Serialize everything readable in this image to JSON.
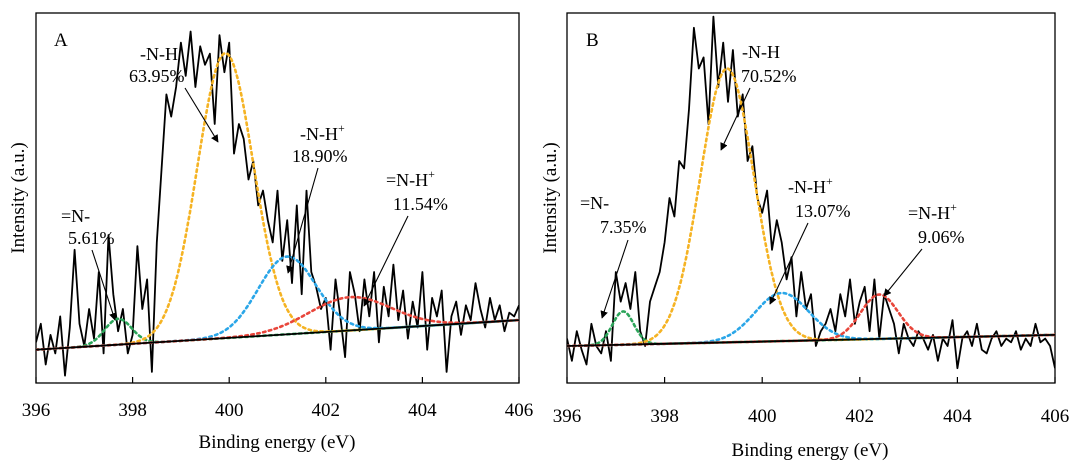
{
  "chart_data": [
    {
      "type": "line",
      "panel_label": "A",
      "xlabel": "Binding energy (eV)",
      "ylabel": "Intensity (a.u.)",
      "xlim": [
        396,
        406
      ],
      "ylim": [
        0,
        100
      ],
      "x_ticks": [
        396,
        398,
        400,
        402,
        404,
        406
      ],
      "x_tick_labels": [
        "396",
        "398",
        "400",
        "402",
        "404",
        "406"
      ],
      "grid": false,
      "baseline": {
        "color": "#000000",
        "y_start": 9,
        "y_end": 17
      },
      "peaks": [
        {
          "name": "=N-",
          "percent": "5.61%",
          "center": 397.7,
          "height": 7,
          "sigma": 0.28,
          "color": "#2ca55a"
        },
        {
          "name": "-N-H",
          "percent": "63.95%",
          "center": 399.92,
          "height": 77,
          "sigma": 0.58,
          "color": "#f5b323"
        },
        {
          "name": "-N-H",
          "superscript": "+",
          "percent": "18.90%",
          "center": 401.2,
          "height": 21,
          "sigma": 0.6,
          "color": "#2aa6e8"
        },
        {
          "name": "=N-H",
          "superscript": "+",
          "percent": "11.54%",
          "center": 402.5,
          "height": 9,
          "sigma": 0.85,
          "color": "#e8463b"
        }
      ],
      "raw_signal": {
        "color": "#000000",
        "x": [
          396.0,
          396.1,
          396.2,
          396.3,
          396.4,
          396.5,
          396.6,
          396.7,
          396.8,
          396.9,
          397.0,
          397.1,
          397.2,
          397.3,
          397.4,
          397.5,
          397.6,
          397.7,
          397.8,
          397.9,
          398.0,
          398.1,
          398.2,
          398.3,
          398.4,
          398.5,
          398.6,
          398.7,
          398.8,
          398.9,
          399.0,
          399.1,
          399.2,
          399.3,
          399.4,
          399.5,
          399.6,
          399.7,
          399.8,
          399.9,
          400.0,
          400.1,
          400.2,
          400.3,
          400.4,
          400.5,
          400.6,
          400.7,
          400.8,
          400.9,
          401.0,
          401.1,
          401.2,
          401.3,
          401.4,
          401.5,
          401.6,
          401.7,
          401.8,
          401.9,
          402.0,
          402.1,
          402.2,
          402.3,
          402.4,
          402.5,
          402.6,
          402.7,
          402.8,
          402.9,
          403.0,
          403.1,
          403.2,
          403.3,
          403.4,
          403.5,
          403.6,
          403.7,
          403.8,
          403.9,
          404.0,
          404.1,
          404.2,
          404.3,
          404.4,
          404.5,
          404.6,
          404.7,
          404.8,
          404.9,
          405.0,
          405.1,
          405.2,
          405.3,
          405.4,
          405.5,
          405.6,
          405.7,
          405.8,
          405.9,
          406.0
        ],
        "y": [
          11,
          16,
          5,
          13,
          8,
          18,
          2,
          15,
          36,
          16,
          10,
          20,
          12,
          30,
          8,
          40,
          24,
          14,
          20,
          8,
          13,
          37,
          20,
          28,
          3,
          38,
          58,
          78,
          72,
          80,
          92,
          83,
          95,
          80,
          91,
          86,
          89,
          70,
          94,
          84,
          92,
          62,
          70,
          66,
          55,
          60,
          48,
          52,
          44,
          38,
          52,
          33,
          44,
          27,
          48,
          24,
          52,
          30,
          26,
          20,
          23,
          9,
          28,
          18,
          7,
          30,
          24,
          14,
          28,
          18,
          30,
          11,
          26,
          18,
          32,
          17,
          25,
          12,
          22,
          15,
          30,
          9,
          23,
          18,
          25,
          3,
          18,
          22,
          13,
          21,
          17,
          27,
          20,
          15,
          23,
          17,
          21,
          14,
          19,
          18,
          21
        ]
      },
      "annotations": [
        {
          "line1": "=N-",
          "line2": "5.61%",
          "target": "=N-"
        },
        {
          "line1": "-N-H",
          "line2": "63.95%",
          "target": "-N-H"
        },
        {
          "line1": "-N-H",
          "sup": "+",
          "line2": "18.90%",
          "target": "-N-H+"
        },
        {
          "line1": "=N-H",
          "sup": "+",
          "line2": "11.54%",
          "target": "=N-H+"
        }
      ]
    },
    {
      "type": "line",
      "panel_label": "B",
      "xlabel": "Binding energy (eV)",
      "ylabel": "Intensity (a.u.)",
      "xlim": [
        396,
        406
      ],
      "ylim": [
        0,
        100
      ],
      "x_ticks": [
        396,
        398,
        400,
        402,
        404,
        406
      ],
      "x_tick_labels": [
        "396",
        "398",
        "400",
        "402",
        "404",
        "406"
      ],
      "grid": false,
      "baseline": {
        "color": "#000000",
        "y_start": 10,
        "y_end": 13
      },
      "peaks": [
        {
          "name": "=N-",
          "percent": "7.35%",
          "center": 397.15,
          "height": 9,
          "sigma": 0.22,
          "color": "#2ca55a"
        },
        {
          "name": "-N-H",
          "percent": "70.52%",
          "center": 399.28,
          "height": 74,
          "sigma": 0.55,
          "color": "#f5b323"
        },
        {
          "name": "-N-H",
          "superscript": "+",
          "percent": "13.07%",
          "center": 400.4,
          "height": 13,
          "sigma": 0.55,
          "color": "#2aa6e8"
        },
        {
          "name": "=N-H",
          "superscript": "+",
          "percent": "9.06%",
          "center": 402.4,
          "height": 12,
          "sigma": 0.38,
          "color": "#e8463b"
        }
      ],
      "raw_signal": {
        "color": "#000000",
        "x": [
          396.0,
          396.1,
          396.2,
          396.3,
          396.4,
          396.5,
          396.6,
          396.7,
          396.8,
          396.9,
          397.0,
          397.1,
          397.2,
          397.3,
          397.4,
          397.5,
          397.6,
          397.7,
          397.8,
          397.9,
          398.0,
          398.1,
          398.2,
          398.3,
          398.4,
          398.5,
          398.6,
          398.7,
          398.8,
          398.9,
          399.0,
          399.1,
          399.2,
          399.3,
          399.4,
          399.5,
          399.6,
          399.7,
          399.8,
          399.9,
          400.0,
          400.1,
          400.2,
          400.3,
          400.4,
          400.5,
          400.6,
          400.7,
          400.8,
          400.9,
          401.0,
          401.1,
          401.2,
          401.3,
          401.4,
          401.5,
          401.6,
          401.7,
          401.8,
          401.9,
          402.0,
          402.1,
          402.2,
          402.3,
          402.4,
          402.5,
          402.6,
          402.7,
          402.8,
          402.9,
          403.0,
          403.1,
          403.2,
          403.3,
          403.4,
          403.5,
          403.6,
          403.7,
          403.8,
          403.9,
          404.0,
          404.1,
          404.2,
          404.3,
          404.4,
          404.5,
          404.6,
          404.7,
          404.8,
          404.9,
          405.0,
          405.1,
          405.2,
          405.3,
          405.4,
          405.5,
          405.6,
          405.7,
          405.8,
          405.9,
          406.0
        ],
        "y": [
          12,
          6,
          14,
          9,
          5,
          16,
          10,
          8,
          14,
          6,
          30,
          22,
          27,
          20,
          30,
          14,
          10,
          22,
          26,
          30,
          38,
          50,
          45,
          60,
          58,
          74,
          96,
          85,
          88,
          70,
          99,
          80,
          92,
          76,
          90,
          72,
          78,
          60,
          64,
          50,
          46,
          52,
          36,
          44,
          38,
          28,
          34,
          18,
          30,
          20,
          24,
          10,
          14,
          16,
          20,
          14,
          24,
          18,
          28,
          16,
          22,
          26,
          14,
          28,
          12,
          24,
          20,
          16,
          8,
          16,
          12,
          10,
          14,
          12,
          9,
          13,
          6,
          12,
          10,
          17,
          4,
          12,
          14,
          10,
          16,
          9,
          8,
          12,
          14,
          10,
          12,
          11,
          14,
          9,
          12,
          10,
          16,
          11,
          12,
          10,
          4
        ]
      },
      "annotations": [
        {
          "line1": "=N-",
          "line2": "7.35%",
          "target": "=N-"
        },
        {
          "line1": "-N-H",
          "line2": "70.52%",
          "target": "-N-H"
        },
        {
          "line1": "-N-H",
          "sup": "+",
          "line2": "13.07%",
          "target": "-N-H+"
        },
        {
          "line1": "=N-H",
          "sup": "+",
          "line2": "9.06%",
          "target": "=N-H+"
        }
      ]
    }
  ]
}
